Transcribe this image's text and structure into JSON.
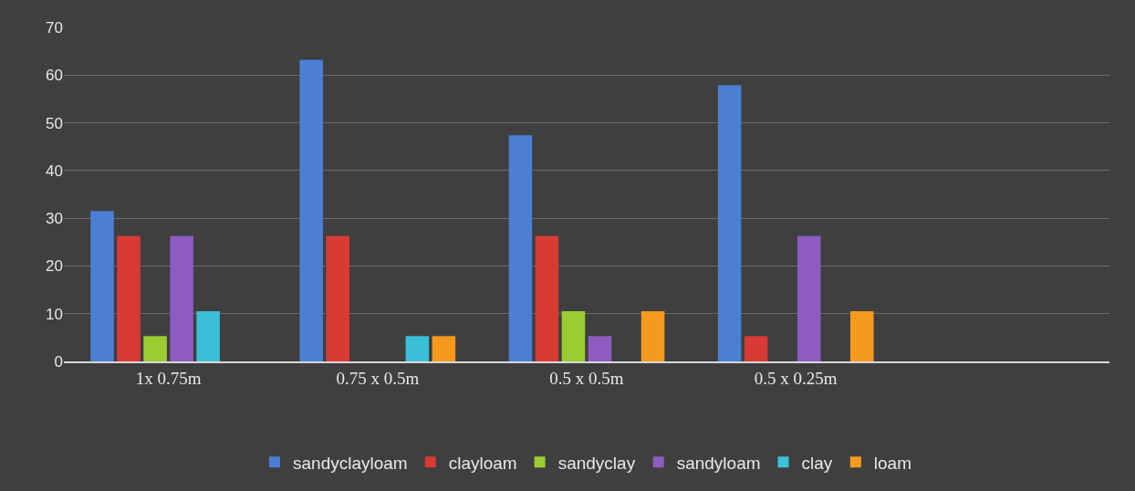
{
  "chart_data": {
    "type": "bar",
    "categories": [
      "1x 0.75m",
      "0.75 x 0.5m",
      "0.5 x 0.5m",
      "0.5 x 0.25m",
      null
    ],
    "series": [
      {
        "name": "sandyclayloam",
        "color": "#4a7fd4",
        "values": [
          31.5,
          63.2,
          47.4,
          57.9,
          null
        ]
      },
      {
        "name": "clayloam",
        "color": "#d83a35",
        "values": [
          26.3,
          26.3,
          26.3,
          5.3,
          null
        ]
      },
      {
        "name": "sandyclay",
        "color": "#9acd32",
        "values": [
          5.3,
          null,
          10.5,
          null,
          null
        ]
      },
      {
        "name": "sandyloam",
        "color": "#8e5cc0",
        "values": [
          26.3,
          null,
          5.3,
          26.3,
          null
        ]
      },
      {
        "name": "clay",
        "color": "#3cc0d8",
        "values": [
          10.5,
          5.3,
          null,
          null,
          null
        ]
      },
      {
        "name": "loam",
        "color": "#f59a1e",
        "values": [
          null,
          5.3,
          10.5,
          10.5,
          null
        ]
      }
    ],
    "ylim": [
      0,
      70
    ],
    "yticks": [
      0,
      10,
      20,
      30,
      40,
      50,
      60,
      70
    ],
    "grid": "y",
    "legend": "bottom"
  }
}
